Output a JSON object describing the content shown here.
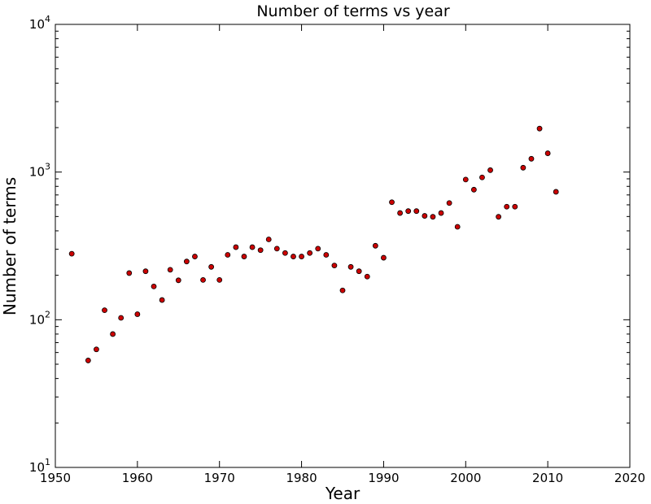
{
  "chart_data": {
    "type": "scatter",
    "title": "Number of terms vs year",
    "xlabel": "Year",
    "ylabel": "Number of terms",
    "xlim": [
      1950,
      2020
    ],
    "ylim": [
      10,
      10000
    ],
    "yscale": "log",
    "grid": false,
    "legend": "none",
    "marker_color": "#cc0000",
    "x_ticks": [
      1950,
      1960,
      1970,
      1980,
      1990,
      2000,
      2010,
      2020
    ],
    "x_tick_labels": [
      "1950",
      "1960",
      "1970",
      "1980",
      "1990",
      "2000",
      "2010",
      "2020"
    ],
    "y_ticks": [
      10,
      100,
      1000,
      10000
    ],
    "y_tick_bases": [
      "10",
      "10",
      "10",
      "10"
    ],
    "y_tick_exps": [
      "1",
      "2",
      "3",
      "4"
    ],
    "series": [
      {
        "x": [
          1952,
          1954,
          1955,
          1956,
          1957,
          1958,
          1959,
          1960,
          1961,
          1962,
          1963,
          1964,
          1965,
          1966,
          1967,
          1968,
          1969,
          1970,
          1971,
          1972,
          1973,
          1974,
          1975,
          1976,
          1977,
          1978,
          1979,
          1980,
          1981,
          1982,
          1983,
          1984,
          1985,
          1986,
          1987,
          1988,
          1989,
          1990,
          1991,
          1992,
          1993,
          1994,
          1995,
          1996,
          1997,
          1998,
          1999,
          2000,
          2001,
          2002,
          2003,
          2004,
          2005,
          2006,
          2007,
          2008,
          2009,
          2010,
          2011
        ],
        "y": [
          280,
          53,
          63,
          116,
          80,
          103,
          207,
          109,
          213,
          168,
          136,
          218,
          185,
          248,
          268,
          186,
          228,
          186,
          275,
          310,
          268,
          310,
          296,
          350,
          303,
          283,
          268,
          268,
          283,
          303,
          275,
          233,
          158,
          228,
          213,
          196,
          317,
          263,
          625,
          528,
          544,
          544,
          505,
          498,
          528,
          617,
          426,
          890,
          760,
          920,
          1030,
          498,
          583,
          583,
          1070,
          1230,
          1970,
          1340,
          735
        ]
      }
    ]
  }
}
